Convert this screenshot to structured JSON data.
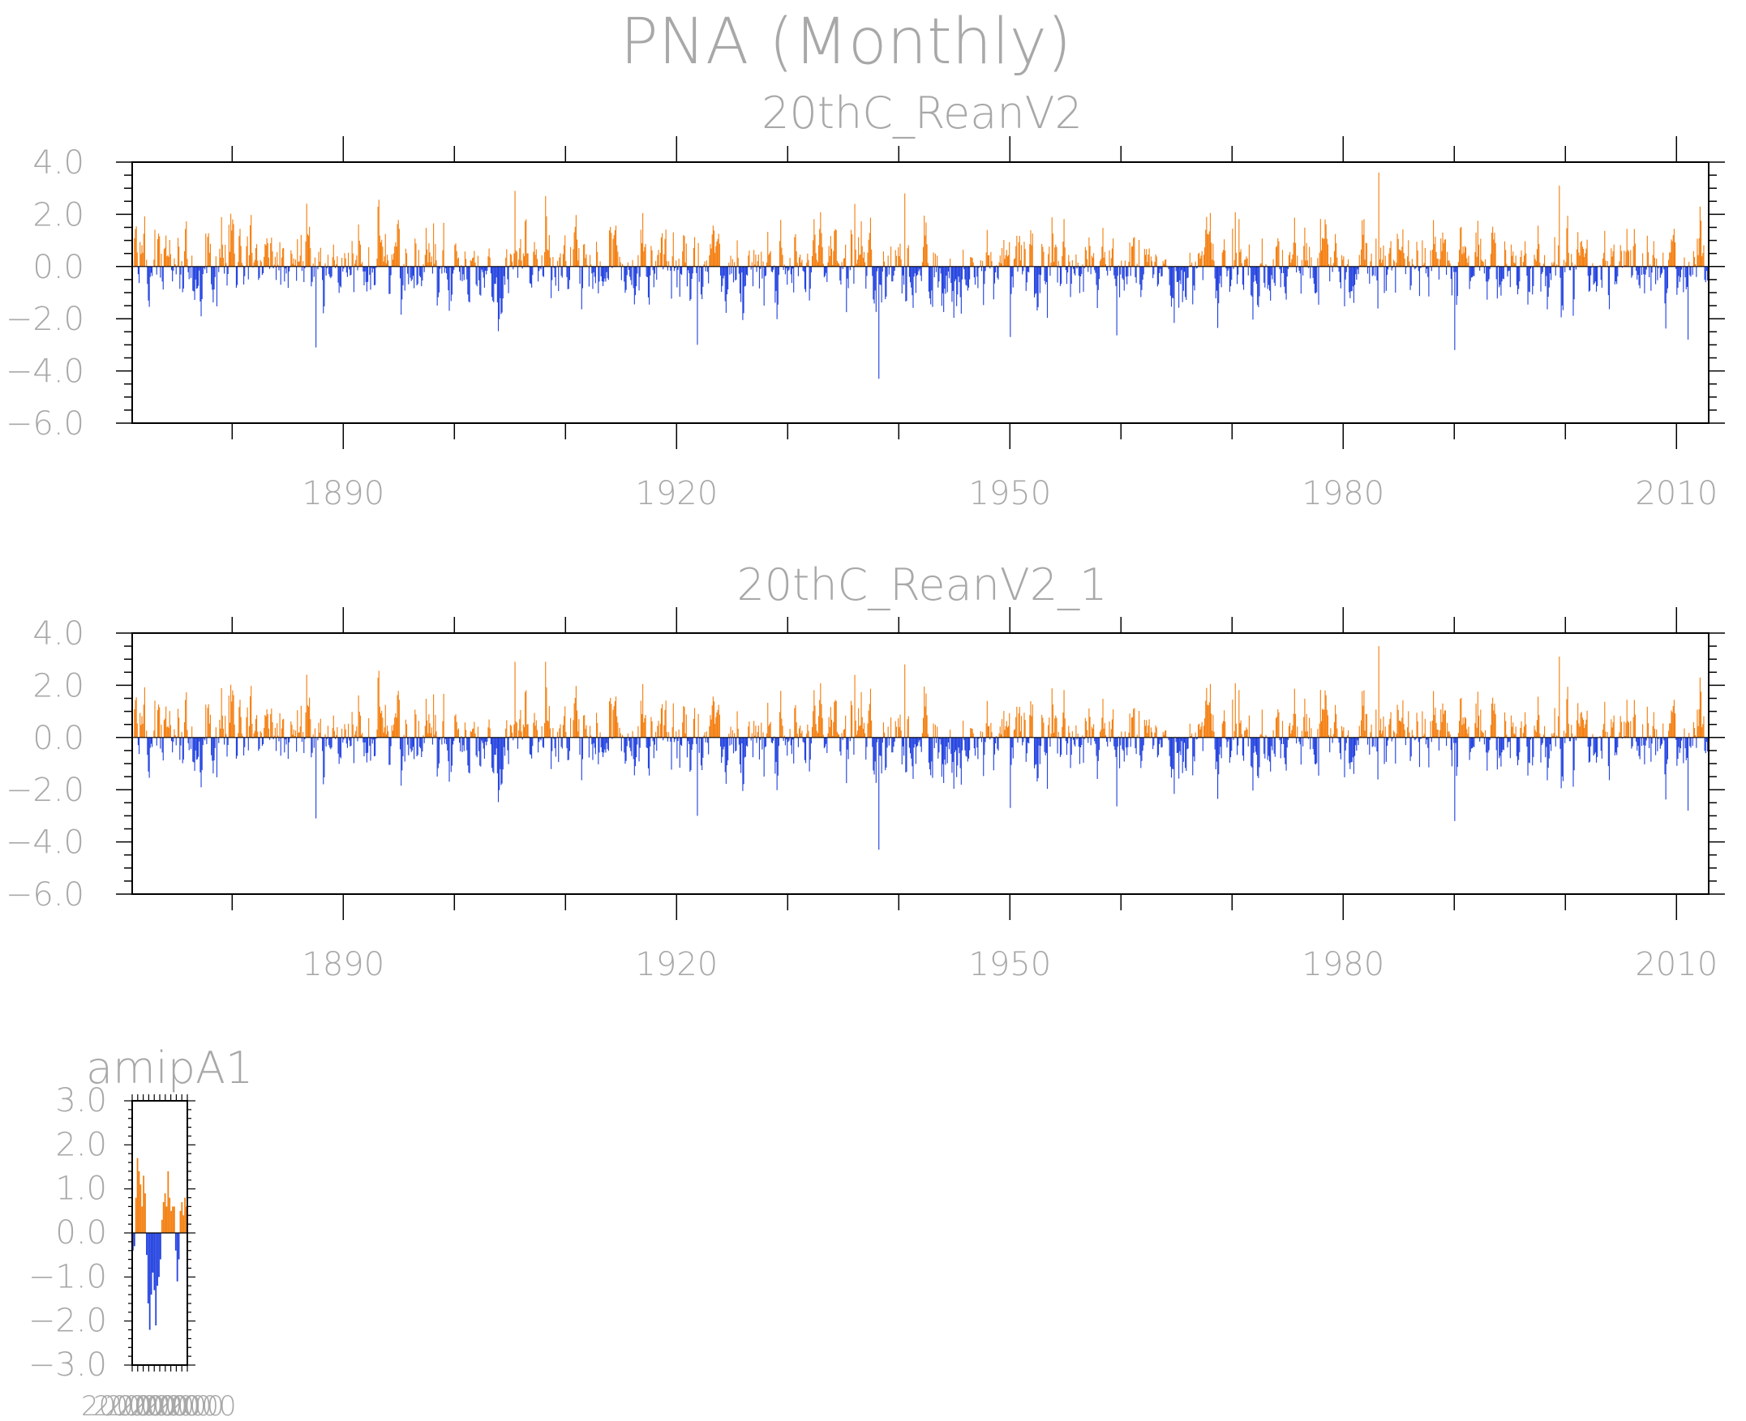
{
  "title": "PNA (Monthly)",
  "colors": {
    "positive": "#f47f10",
    "negative": "#2343e0",
    "frame": "#000000",
    "text": "#a8a8a8"
  },
  "chart_data": [
    {
      "type": "bar",
      "title": "20thC_ReanV2",
      "ylim": [
        -6.0,
        4.0
      ],
      "yticks": [
        "4.0",
        "2.0",
        "0.0",
        "−2.0",
        "−4.0",
        "−6.0"
      ],
      "xlim": [
        1871,
        2012.9
      ],
      "xticks": [
        "1890",
        "1920",
        "1950",
        "1980",
        "2010"
      ],
      "grid": false,
      "legend": "none",
      "series": [
        {
          "x_start": 1871,
          "x_end": 2012.9,
          "step": "monthly",
          "key_points": [
            {
              "x": 1887.5,
              "y": -3.1
            },
            {
              "x": 1905.4,
              "y": 2.9
            },
            {
              "x": 1908.2,
              "y": 2.7
            },
            {
              "x": 1921.8,
              "y": -3.0
            },
            {
              "x": 1936.0,
              "y": 2.4
            },
            {
              "x": 1938.2,
              "y": -4.3
            },
            {
              "x": 1940.5,
              "y": 2.8
            },
            {
              "x": 1950.0,
              "y": -2.7
            },
            {
              "x": 1983.2,
              "y": 3.6
            },
            {
              "x": 1990.0,
              "y": -3.2
            },
            {
              "x": 1999.4,
              "y": 3.1
            },
            {
              "x": 2011.0,
              "y": -2.8
            }
          ]
        }
      ]
    },
    {
      "type": "bar",
      "title": "20thC_ReanV2_1",
      "ylim": [
        -6.0,
        4.0
      ],
      "yticks": [
        "4.0",
        "2.0",
        "0.0",
        "−2.0",
        "−4.0",
        "−6.0"
      ],
      "xlim": [
        1871,
        2012.9
      ],
      "xticks": [
        "1890",
        "1920",
        "1950",
        "1980",
        "2010"
      ],
      "grid": false,
      "legend": "none",
      "series": [
        {
          "x_start": 1871,
          "x_end": 2012.9,
          "step": "monthly",
          "key_points": [
            {
              "x": 1887.5,
              "y": -3.1
            },
            {
              "x": 1905.4,
              "y": 2.9
            },
            {
              "x": 1908.2,
              "y": 2.9
            },
            {
              "x": 1921.8,
              "y": -3.0
            },
            {
              "x": 1936.0,
              "y": 2.4
            },
            {
              "x": 1938.2,
              "y": -4.3
            },
            {
              "x": 1940.5,
              "y": 2.8
            },
            {
              "x": 1950.0,
              "y": -2.7
            },
            {
              "x": 1983.2,
              "y": 3.5
            },
            {
              "x": 1990.0,
              "y": -3.2
            },
            {
              "x": 1999.4,
              "y": 3.1
            },
            {
              "x": 2011.0,
              "y": -2.8
            }
          ]
        }
      ]
    },
    {
      "type": "bar",
      "title": "amipA1",
      "ylim": [
        -3.0,
        3.0
      ],
      "yticks": [
        "3.0",
        "2.0",
        "1.0",
        "0.0",
        "−1.0",
        "−2.0",
        "−3.0"
      ],
      "xticks_text": "2000",
      "grid": false,
      "legend": "none",
      "series": [
        {
          "values": [
            -0.4,
            -0.3,
            0.8,
            1.7,
            1.4,
            1.1,
            0.6,
            1.3,
            0.9,
            -0.5,
            -1.6,
            -2.2,
            -1.4,
            -0.9,
            -1.3,
            -2.1,
            -1.2,
            -1.0,
            -0.6,
            0.3,
            0.7,
            0.9,
            0.6,
            1.4,
            0.8,
            0.5,
            0.6,
            0.6,
            -0.4,
            -1.1,
            -0.6,
            0.5,
            0.7,
            0.4,
            0.8,
            0.6
          ]
        }
      ]
    }
  ]
}
